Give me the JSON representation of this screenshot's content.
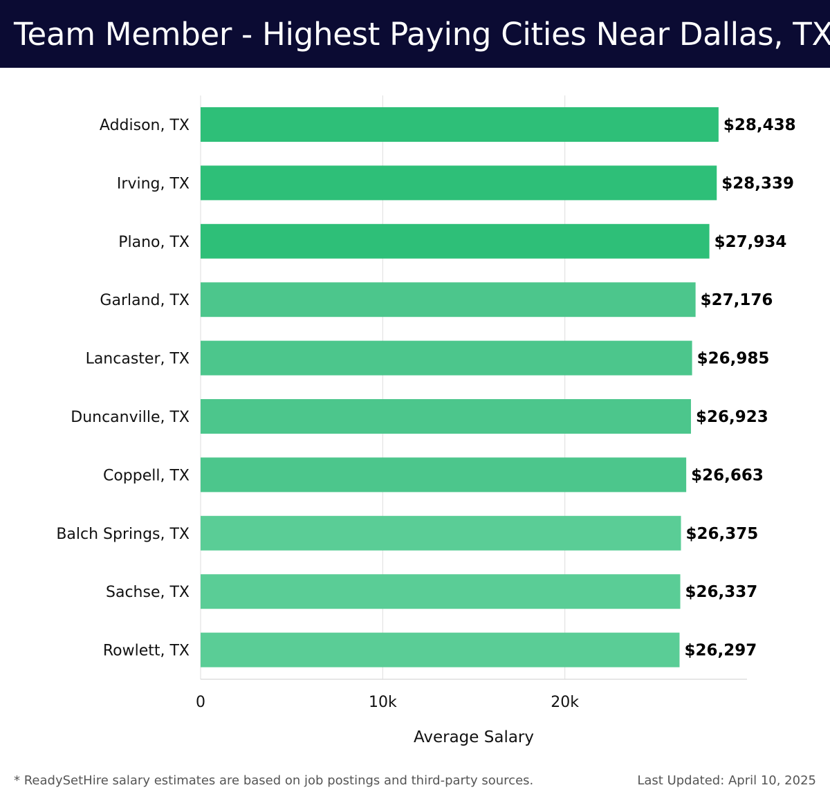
{
  "header": {
    "title": "Team Member - Highest Paying Cities Near Dallas, TX"
  },
  "footer": {
    "note": "* ReadySetHire salary estimates are based on job postings and third-party sources.",
    "updated": "Last Updated: April 10, 2025"
  },
  "colors": {
    "header_bg": "#0b0b33",
    "bar_dark": "#2ebf78",
    "bar_mid": "#4cc68c",
    "bar_light": "#5acd96",
    "grid": "#e3e3e3"
  },
  "chart_data": {
    "type": "bar",
    "orientation": "horizontal",
    "title": "Team Member - Highest Paying Cities Near Dallas, TX",
    "xlabel": "Average Salary",
    "ylabel": "",
    "xlim": [
      0,
      30000
    ],
    "xticks": [
      0,
      10000,
      20000
    ],
    "xtick_labels": [
      "0",
      "10k",
      "20k"
    ],
    "grid": true,
    "categories": [
      "Addison, TX",
      "Irving, TX",
      "Plano, TX",
      "Garland, TX",
      "Lancaster, TX",
      "Duncanville, TX",
      "Coppell, TX",
      "Balch Springs, TX",
      "Sachse, TX",
      "Rowlett, TX"
    ],
    "values": [
      28438,
      28339,
      27934,
      27176,
      26985,
      26923,
      26663,
      26375,
      26337,
      26297
    ],
    "value_labels": [
      "$28,438",
      "$28,339",
      "$27,934",
      "$27,176",
      "$26,985",
      "$26,923",
      "$26,663",
      "$26,375",
      "$26,337",
      "$26,297"
    ]
  }
}
